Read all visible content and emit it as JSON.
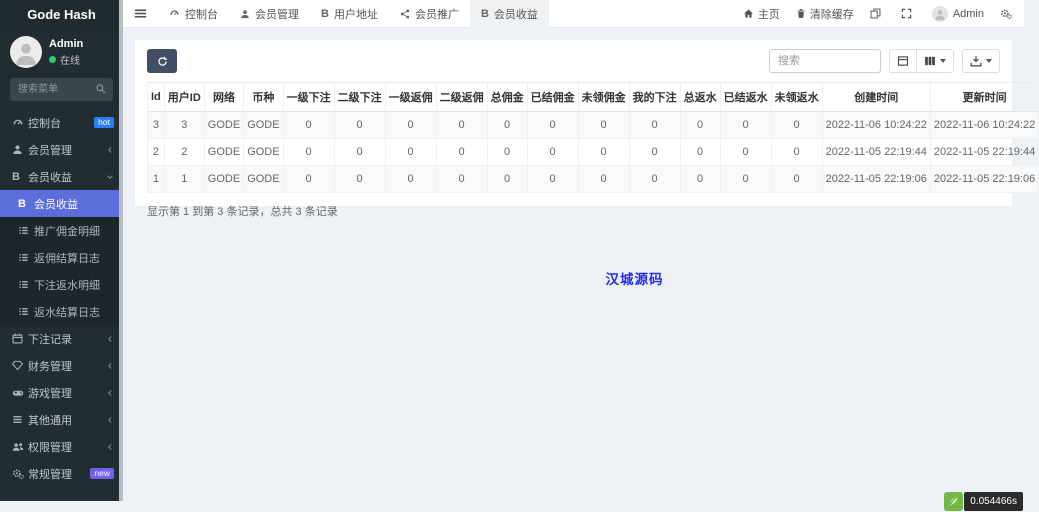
{
  "brand": "Gode Hash",
  "user": {
    "name": "Admin",
    "status_label": "在线"
  },
  "sidebar": {
    "search_placeholder": "搜索菜单",
    "items": [
      {
        "label": "控制台",
        "icon": "tachometer-icon",
        "badge": "hot"
      },
      {
        "label": "会员管理",
        "icon": "user-icon"
      },
      {
        "label": "会员收益",
        "icon": "btc-icon"
      },
      {
        "label": "下注记录",
        "icon": "calendar-icon"
      },
      {
        "label": "财务管理",
        "icon": "gem-icon"
      },
      {
        "label": "游戏管理",
        "icon": "gamepad-icon"
      },
      {
        "label": "其他通用",
        "icon": "list-icon"
      },
      {
        "label": "权限管理",
        "icon": "users-icon"
      },
      {
        "label": "常规管理",
        "icon": "cogs-icon",
        "badge": "new"
      }
    ],
    "submenu": [
      {
        "label": "会员收益",
        "icon": "btc-icon",
        "active": true
      },
      {
        "label": "推广佣金明细",
        "icon": "list-icon"
      },
      {
        "label": "返佣结算日志",
        "icon": "list-icon"
      },
      {
        "label": "下注返水明细",
        "icon": "list-icon"
      },
      {
        "label": "返水结算日志",
        "icon": "list-icon"
      }
    ]
  },
  "topnav": {
    "tabs": [
      {
        "label": "控制台",
        "icon": "tachometer-icon"
      },
      {
        "label": "会员管理",
        "icon": "user-icon"
      },
      {
        "label": "用户地址",
        "icon": "btc-icon"
      },
      {
        "label": "会员推广",
        "icon": "share-icon"
      },
      {
        "label": "会员收益",
        "icon": "btc-icon",
        "active": true
      }
    ],
    "home_label": "主页",
    "clear_cache_label": "清除缓存",
    "username": "Admin"
  },
  "toolbar": {
    "search_placeholder": "搜索"
  },
  "table": {
    "headers": [
      "Id",
      "用户ID",
      "网络",
      "币种",
      "一级下注",
      "二级下注",
      "一级返佣",
      "二级返佣",
      "总佣金",
      "已结佣金",
      "未领佣金",
      "我的下注",
      "总返水",
      "已结返水",
      "未领返水",
      "创建时间",
      "更新时间"
    ],
    "rows": [
      [
        "3",
        "3",
        "GODE",
        "GODE",
        "0",
        "0",
        "0",
        "0",
        "0",
        "0",
        "0",
        "0",
        "0",
        "0",
        "0",
        "2022-11-06 10:24:22",
        "2022-11-06 10:24:22"
      ],
      [
        "2",
        "2",
        "GODE",
        "GODE",
        "0",
        "0",
        "0",
        "0",
        "0",
        "0",
        "0",
        "0",
        "0",
        "0",
        "0",
        "2022-11-05 22:19:44",
        "2022-11-05 22:19:44"
      ],
      [
        "1",
        "1",
        "GODE",
        "GODE",
        "0",
        "0",
        "0",
        "0",
        "0",
        "0",
        "0",
        "0",
        "0",
        "0",
        "0",
        "2022-11-05 22:19:06",
        "2022-11-05 22:19:06"
      ]
    ],
    "summary": "显示第 1 到第 3 条记录，总共 3 条记录"
  },
  "watermark": "汉城源码",
  "timer": {
    "value": "0.054466s"
  },
  "colors": {
    "accent": "#5a6dd8",
    "hot_badge": "#2d7ff9",
    "new_badge": "#7460ee",
    "online_green": "#2ecc71",
    "timer_green": "#74b847",
    "watermark_blue": "#2429f0",
    "sidebar_bg": "#222d32",
    "refresh_button": "#414e63"
  }
}
